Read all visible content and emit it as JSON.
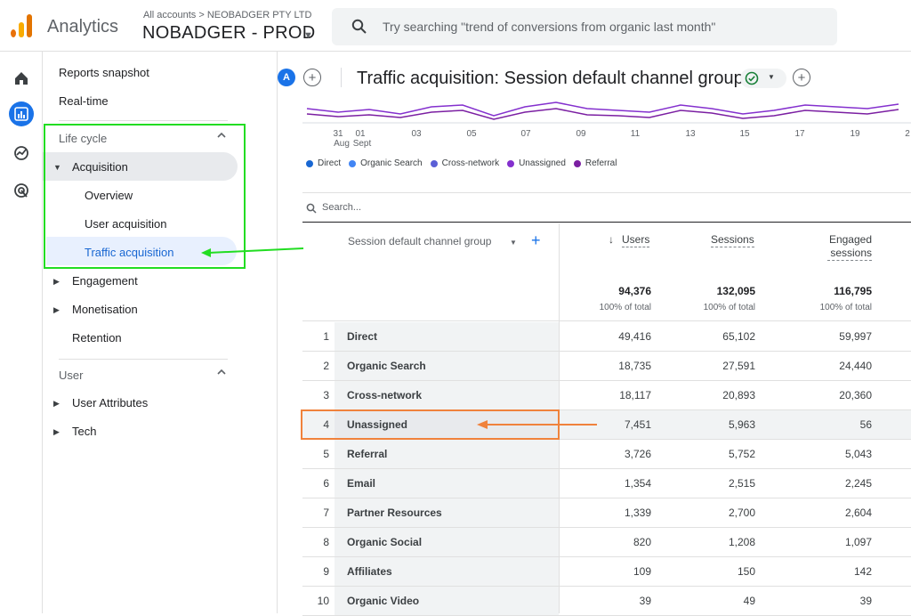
{
  "topbar": {
    "app_name": "Analytics",
    "account_crumb": "All accounts > NEOBADGER PTY LTD",
    "property_name": "NOBADGER - PROD",
    "search_placeholder": "Try searching \"trend of conversions from organic last month\""
  },
  "sidenav": {
    "reports_snapshot": "Reports snapshot",
    "realtime": "Real-time",
    "lifecycle_label": "Life cycle",
    "acquisition": "Acquisition",
    "overview": "Overview",
    "user_acquisition": "User acquisition",
    "traffic_acquisition": "Traffic acquisition",
    "engagement": "Engagement",
    "monetisation": "Monetisation",
    "retention": "Retention",
    "user_label": "User",
    "user_attributes": "User Attributes",
    "tech": "Tech"
  },
  "header": {
    "avatar": "A",
    "title": "Traffic acquisition: Session default channel group"
  },
  "chart_data": {
    "type": "line",
    "x_ticks": [
      "31",
      "01",
      "03",
      "05",
      "07",
      "09",
      "11",
      "13",
      "15",
      "17",
      "19",
      "2"
    ],
    "x_month_labels": [
      "Aug",
      "Sept"
    ],
    "legend": [
      "Direct",
      "Organic Search",
      "Cross-network",
      "Unassigned",
      "Referral"
    ],
    "series_colors": [
      "#1967d2",
      "#4285f4",
      "#5b5fd6",
      "#8430ce",
      "#7b1fa2"
    ]
  },
  "table": {
    "search_placeholder": "Search...",
    "dimension_header": "Session default channel group",
    "metric_headers": [
      "Users",
      "Sessions",
      "Engaged sessions"
    ],
    "sort_indicator": "↓",
    "totals": [
      "94,376",
      "132,095",
      "116,795"
    ],
    "totals_pct": [
      "100% of total",
      "100% of total",
      "100% of total"
    ],
    "rows": [
      {
        "idx": "1",
        "name": "Direct",
        "users": "49,416",
        "sessions": "65,102",
        "engaged": "59,997"
      },
      {
        "idx": "2",
        "name": "Organic Search",
        "users": "18,735",
        "sessions": "27,591",
        "engaged": "24,440"
      },
      {
        "idx": "3",
        "name": "Cross-network",
        "users": "18,117",
        "sessions": "20,893",
        "engaged": "20,360"
      },
      {
        "idx": "4",
        "name": "Unassigned",
        "users": "7,451",
        "sessions": "5,963",
        "engaged": "56"
      },
      {
        "idx": "5",
        "name": "Referral",
        "users": "3,726",
        "sessions": "5,752",
        "engaged": "5,043"
      },
      {
        "idx": "6",
        "name": "Email",
        "users": "1,354",
        "sessions": "2,515",
        "engaged": "2,245"
      },
      {
        "idx": "7",
        "name": "Partner Resources",
        "users": "1,339",
        "sessions": "2,700",
        "engaged": "2,604"
      },
      {
        "idx": "8",
        "name": "Organic Social",
        "users": "820",
        "sessions": "1,208",
        "engaged": "1,097"
      },
      {
        "idx": "9",
        "name": "Affiliates",
        "users": "109",
        "sessions": "150",
        "engaged": "142"
      },
      {
        "idx": "10",
        "name": "Organic Video",
        "users": "39",
        "sessions": "49",
        "engaged": "39"
      }
    ]
  },
  "annotations": {
    "green_color": "#22dd22",
    "orange_color": "#f0823c"
  }
}
